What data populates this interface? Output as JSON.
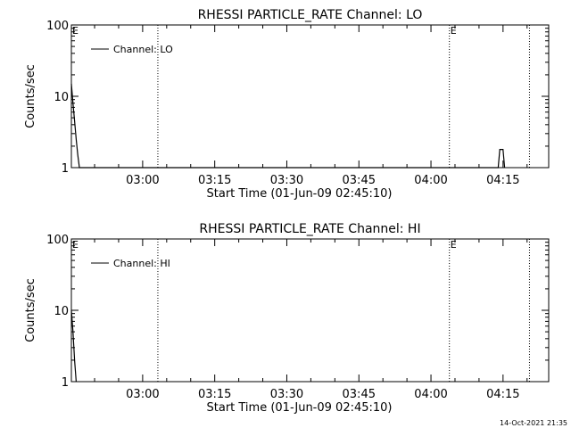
{
  "chart_data": [
    {
      "type": "line",
      "title": "RHESSI PARTICLE_RATE Channel: LO",
      "xlabel": "Start Time (01-Jun-09 02:45:10)",
      "ylabel": "Counts/sec",
      "yscale": "log",
      "ylim": [
        1,
        100
      ],
      "xlim": [
        "02:45:10",
        "04:24:30"
      ],
      "yticks": [
        {
          "value": 1,
          "label": "1"
        },
        {
          "value": 10,
          "label": "10"
        },
        {
          "value": 100,
          "label": "100"
        }
      ],
      "xticks": [
        "03:00",
        "03:15",
        "03:30",
        "03:45",
        "04:00",
        "04:15"
      ],
      "legend": {
        "position": "top-left",
        "entries": [
          {
            "name": "Channel: LO"
          }
        ]
      },
      "series": [
        {
          "name": "Channel: LO",
          "x": [
            "02:45:10",
            "02:45:30",
            "02:45:50",
            "02:46:10",
            "02:46:30",
            "02:46:50",
            "04:13:30",
            "04:14:00",
            "04:14:20",
            "04:14:40",
            "04:15:00",
            "04:15:20"
          ],
          "y": [
            15,
            8,
            4.5,
            2.5,
            1.5,
            1.0,
            1.0,
            1.0,
            1.8,
            1.8,
            1.8,
            1.0
          ]
        }
      ],
      "markers": [
        {
          "time": "02:45:10",
          "label": "E",
          "line": false
        },
        {
          "time": "03:03:10",
          "label": "",
          "line": true
        },
        {
          "time": "04:03:50",
          "label": "E",
          "line": true
        },
        {
          "time": "04:20:30",
          "label": "",
          "line": true
        }
      ]
    },
    {
      "type": "line",
      "title": "RHESSI PARTICLE_RATE Channel: HI",
      "xlabel": "Start Time (01-Jun-09 02:45:10)",
      "ylabel": "Counts/sec",
      "yscale": "log",
      "ylim": [
        1,
        100
      ],
      "xlim": [
        "02:45:10",
        "04:24:30"
      ],
      "yticks": [
        {
          "value": 1,
          "label": "1"
        },
        {
          "value": 10,
          "label": "10"
        },
        {
          "value": 100,
          "label": "100"
        }
      ],
      "xticks": [
        "03:00",
        "03:15",
        "03:30",
        "03:45",
        "04:00",
        "04:15"
      ],
      "legend": {
        "position": "top-left",
        "entries": [
          {
            "name": "Channel: HI"
          }
        ]
      },
      "series": [
        {
          "name": "Channel: HI",
          "x": [
            "02:45:10",
            "02:45:30",
            "02:45:50",
            "02:46:10"
          ],
          "y": [
            10,
            5,
            2,
            1.0
          ]
        }
      ],
      "markers": [
        {
          "time": "02:45:10",
          "label": "E",
          "line": false
        },
        {
          "time": "03:03:10",
          "label": "",
          "line": true
        },
        {
          "time": "04:03:50",
          "label": "E",
          "line": true
        },
        {
          "time": "04:20:30",
          "label": "",
          "line": true
        }
      ]
    }
  ],
  "footer": {
    "timestamp": "14-Oct-2021 21:35"
  }
}
